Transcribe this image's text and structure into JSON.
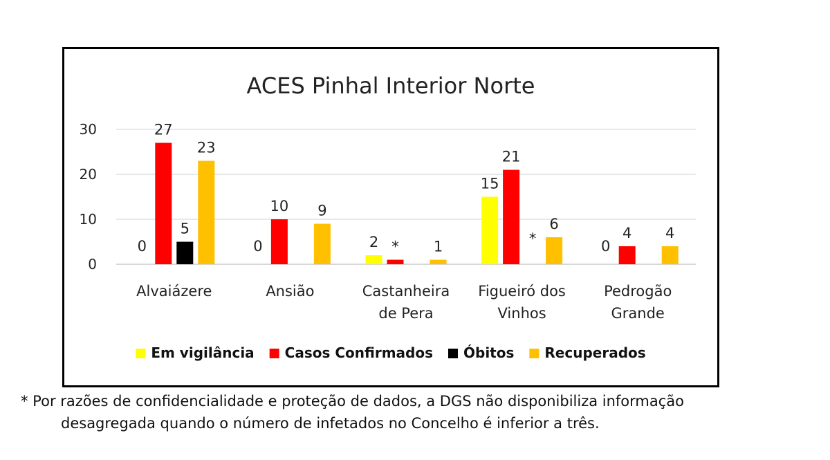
{
  "chart_data": {
    "type": "bar",
    "title": "ACES Pinhal Interior Norte",
    "xlabel": "",
    "ylabel": "",
    "ylim": [
      0,
      30
    ],
    "yticks": [
      0,
      10,
      20,
      30
    ],
    "grid": true,
    "legend_position": "bottom",
    "categories": [
      [
        "Alvaiázere"
      ],
      [
        "Ansião"
      ],
      [
        "Castanheira",
        "de Pera"
      ],
      [
        "Figueiró dos",
        "Vinhos"
      ],
      [
        "Pedrogão",
        "Grande"
      ]
    ],
    "series": [
      {
        "name": "Em vigilância",
        "color": "#ffff00",
        "values": [
          0,
          0,
          2,
          15,
          0
        ],
        "labels": [
          "0",
          "0",
          "2",
          "15",
          "0"
        ]
      },
      {
        "name": "Casos Confirmados",
        "color": "#ff0000",
        "values": [
          27,
          10,
          1,
          21,
          4
        ],
        "labels": [
          "27",
          "10",
          "*",
          "21",
          "4"
        ]
      },
      {
        "name": "Óbitos",
        "color": "#000000",
        "values": [
          5,
          null,
          null,
          null,
          null
        ],
        "labels": [
          "5",
          "",
          "",
          "*",
          ""
        ]
      },
      {
        "name": "Recuperados",
        "color": "#ffc000",
        "values": [
          23,
          9,
          1,
          6,
          4
        ],
        "labels": [
          "23",
          "9",
          "1",
          "6",
          "4"
        ]
      }
    ]
  },
  "footnote": {
    "line1": "* Por razões de confidencialidade e proteção de dados, a DGS não disponibiliza informação",
    "line2": "desagregada quando o número de infetados no Concelho é inferior a três."
  }
}
